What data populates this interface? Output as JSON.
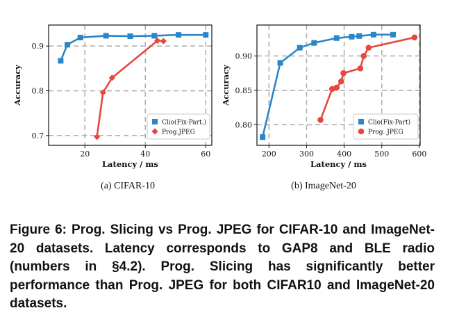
{
  "colors": {
    "clio": "#2a86c8",
    "jpeg": "#e5483d",
    "grid": "#b0b0b0"
  },
  "chart_data": [
    {
      "type": "line",
      "subcaption": "(a)  CIFAR-10",
      "xlabel": "Latency / ms",
      "ylabel": "Accuracy",
      "xlim": [
        8,
        62
      ],
      "ylim": [
        0.678,
        0.947
      ],
      "xticks": [
        20,
        40,
        60
      ],
      "yticks": [
        0.7,
        0.8,
        0.9
      ],
      "ytick_labels": [
        "0.7",
        "0.8",
        "0.9"
      ],
      "grid": true,
      "legend_position": "lower-right",
      "series": [
        {
          "name": "Clio(Fix-Part.)",
          "marker": "square",
          "color": "#2a86c8",
          "x": [
            12,
            14.2,
            18.5,
            27,
            35,
            43,
            51,
            60
          ],
          "y": [
            0.867,
            0.903,
            0.919,
            0.923,
            0.922,
            0.923,
            0.925,
            0.925
          ]
        },
        {
          "name": "Prog.JPEG",
          "marker": "diamond",
          "color": "#e5483d",
          "x": [
            24,
            26,
            29,
            44,
            46
          ],
          "y": [
            0.697,
            0.796,
            0.829,
            0.912,
            0.911
          ]
        }
      ]
    },
    {
      "type": "line",
      "subcaption": "(b)  ImageNet-20",
      "xlabel": "Latency / ms",
      "ylabel": "Accuracy",
      "xlim": [
        168,
        602
      ],
      "ylim": [
        0.77,
        0.945
      ],
      "xticks": [
        200,
        300,
        400,
        500,
        600
      ],
      "yticks": [
        0.8,
        0.85,
        0.9
      ],
      "ytick_labels": [
        "0.80",
        "0.85",
        "0.90"
      ],
      "grid": true,
      "legend_position": "lower-right",
      "series": [
        {
          "name": "Clio(Fix-Part)",
          "marker": "square",
          "color": "#2a86c8",
          "x": [
            183,
            230,
            282,
            320,
            380,
            420,
            440,
            478,
            530
          ],
          "y": [
            0.782,
            0.89,
            0.912,
            0.919,
            0.926,
            0.928,
            0.929,
            0.931,
            0.931
          ]
        },
        {
          "name": "Prog. JPEG",
          "marker": "circle",
          "color": "#e5483d",
          "x": [
            337,
            368,
            380,
            392,
            398,
            443,
            452,
            465,
            587
          ],
          "y": [
            0.807,
            0.852,
            0.854,
            0.863,
            0.875,
            0.882,
            0.9,
            0.912,
            0.927
          ]
        }
      ]
    }
  ],
  "caption": "Figure 6: Prog. Slicing vs Prog. JPEG for CIFAR-10 and ImageNet-20 datasets. Latency corresponds to GAP8 and BLE radio (numbers in §4.2). Prog. Slicing has significantly better performance than Prog. JPEG for both CIFAR10 and ImageNet-20 datasets."
}
